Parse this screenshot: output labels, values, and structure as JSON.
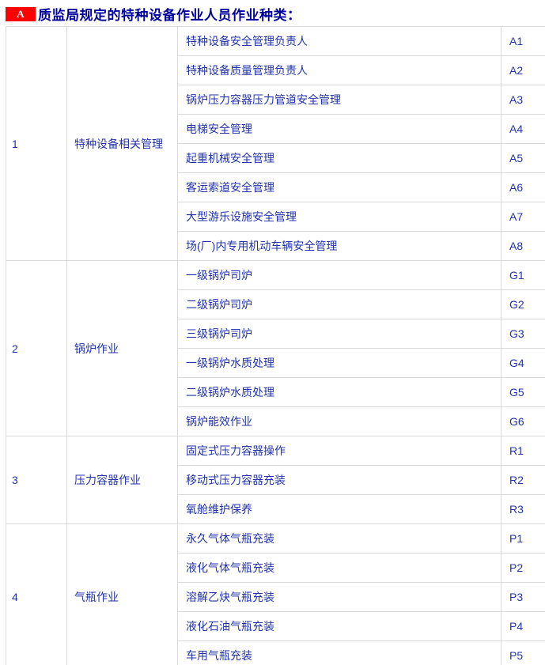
{
  "header": {
    "badge": "A",
    "title": "质监局规定的特种设备作业人员作业种类："
  },
  "colors": {
    "badge_bg": "#ff0000",
    "badge_text": "#ffffff",
    "title_text": "#00009c",
    "cell_text": "#2233aa",
    "border": "#d9d9d9"
  },
  "table": {
    "groups": [
      {
        "number": "1",
        "category": "特种设备相关管理",
        "rows": [
          {
            "job": "特种设备安全管理负责人",
            "code": "A1"
          },
          {
            "job": "特种设备质量管理负责人",
            "code": "A2"
          },
          {
            "job": "锅炉压力容器压力管道安全管理",
            "code": "A3"
          },
          {
            "job": "电梯安全管理",
            "code": "A4"
          },
          {
            "job": "起重机械安全管理",
            "code": "A5"
          },
          {
            "job": "客运索道安全管理",
            "code": "A6"
          },
          {
            "job": "大型游乐设施安全管理",
            "code": "A7"
          },
          {
            "job": "场(厂)内专用机动车辆安全管理",
            "code": "A8"
          }
        ]
      },
      {
        "number": "2",
        "category": "锅炉作业",
        "rows": [
          {
            "job": "一级锅炉司炉",
            "code": "G1"
          },
          {
            "job": "二级锅炉司炉",
            "code": "G2"
          },
          {
            "job": "三级锅炉司炉",
            "code": "G3"
          },
          {
            "job": "一级锅炉水质处理",
            "code": "G4"
          },
          {
            "job": "二级锅炉水质处理",
            "code": "G5"
          },
          {
            "job": "锅炉能效作业",
            "code": "G6"
          }
        ]
      },
      {
        "number": "3",
        "category": "压力容器作业",
        "rows": [
          {
            "job": "固定式压力容器操作",
            "code": "R1"
          },
          {
            "job": "移动式压力容器充装",
            "code": "R2"
          },
          {
            "job": "氧舱维护保养",
            "code": "R3"
          }
        ]
      },
      {
        "number": "4",
        "category": "气瓶作业",
        "rows": [
          {
            "job": "永久气体气瓶充装",
            "code": "P1"
          },
          {
            "job": "液化气体气瓶充装",
            "code": "P2"
          },
          {
            "job": "溶解乙炔气瓶充装",
            "code": "P3"
          },
          {
            "job": "液化石油气瓶充装",
            "code": "P4"
          },
          {
            "job": "车用气瓶充装",
            "code": "P5"
          }
        ]
      }
    ]
  }
}
